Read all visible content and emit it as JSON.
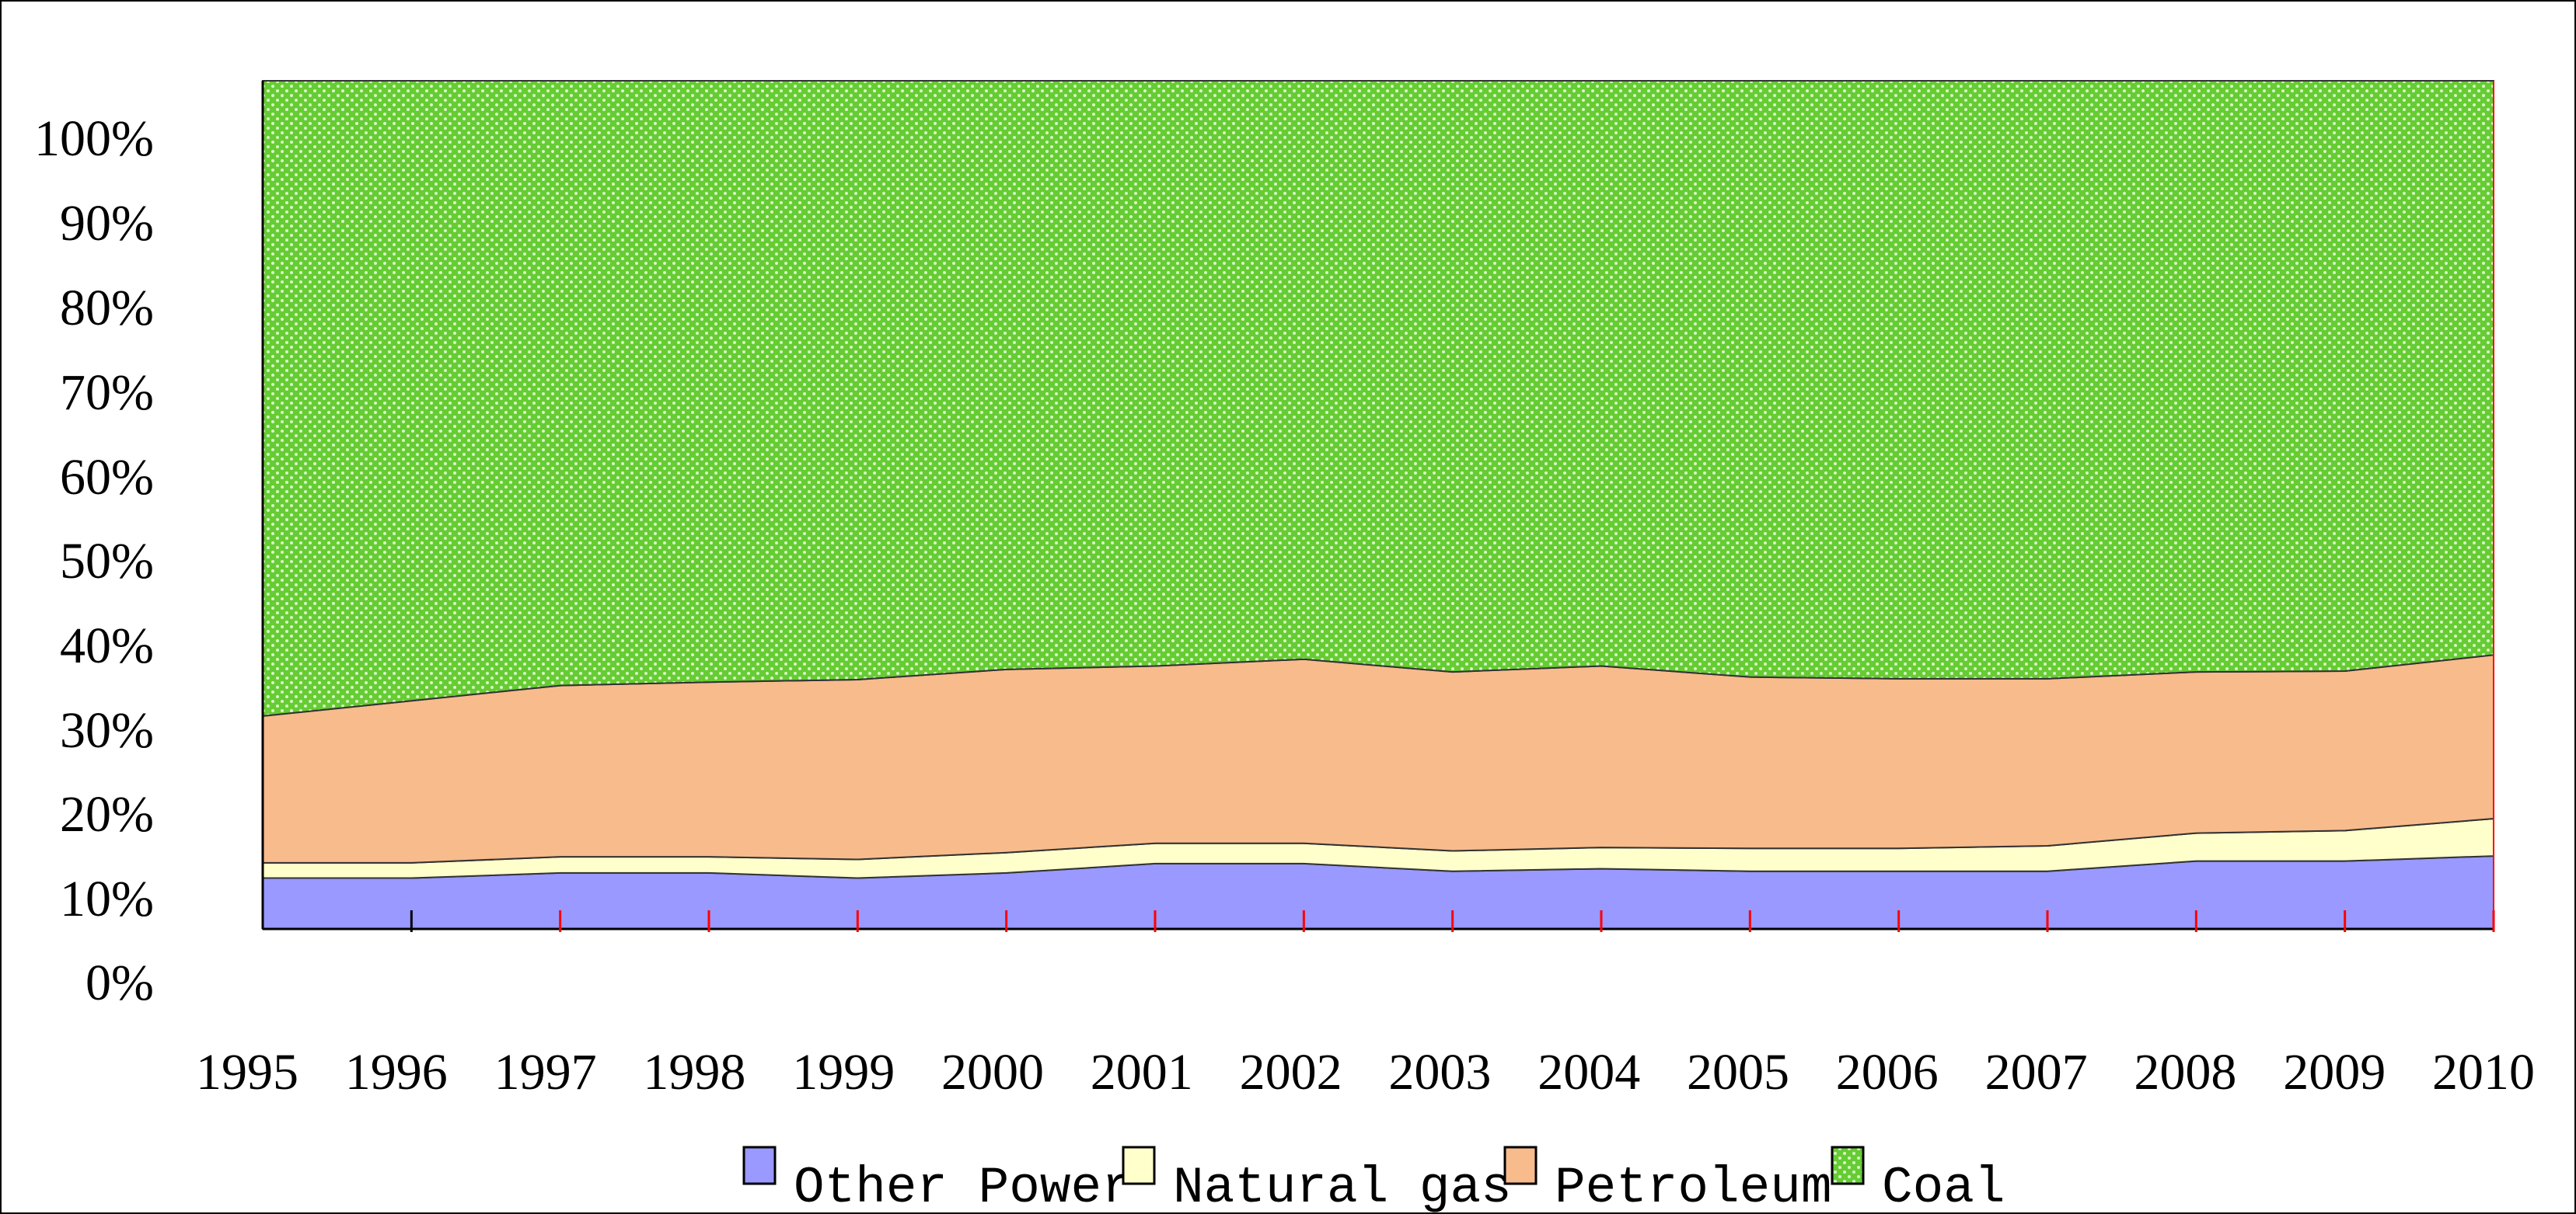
{
  "chart_data": {
    "type": "area",
    "stacked": true,
    "percent": true,
    "x": [
      "1995",
      "1996",
      "1997",
      "1998",
      "1999",
      "2000",
      "2001",
      "2002",
      "2003",
      "2004",
      "2005",
      "2006",
      "2007",
      "2008",
      "2009",
      "2010"
    ],
    "series": [
      {
        "name": "Other Power",
        "color": "#9999ff",
        "values": [
          6.0,
          6.0,
          6.6,
          6.6,
          6.0,
          6.6,
          7.7,
          7.7,
          6.8,
          7.1,
          6.8,
          6.8,
          6.8,
          8.0,
          8.0,
          8.6
        ]
      },
      {
        "name": "Natural gas",
        "color": "#ffffcc",
        "values": [
          1.8,
          1.8,
          1.9,
          1.9,
          2.2,
          2.4,
          2.4,
          2.4,
          2.4,
          2.5,
          2.7,
          2.7,
          3.0,
          3.3,
          3.6,
          4.4
        ]
      },
      {
        "name": "Petroleum",
        "color": "#f8bb8c",
        "values": [
          17.3,
          19.1,
          20.2,
          20.6,
          21.2,
          21.6,
          20.9,
          21.7,
          21.1,
          21.4,
          20.2,
          20.0,
          19.7,
          19.0,
          18.8,
          19.3
        ]
      },
      {
        "name": "Coal",
        "color": "#66cc33",
        "values": [
          74.9,
          73.1,
          71.3,
          70.9,
          70.6,
          69.4,
          69.0,
          68.2,
          69.7,
          69.0,
          70.3,
          70.5,
          70.5,
          69.7,
          69.6,
          67.7
        ]
      }
    ],
    "y_ticks": [
      "100%",
      "90%",
      "80%",
      "70%",
      "60%",
      "50%",
      "40%",
      "30%",
      "20%",
      "10%",
      "0%"
    ],
    "legend": {
      "position": "bottom"
    },
    "grid": false
  }
}
